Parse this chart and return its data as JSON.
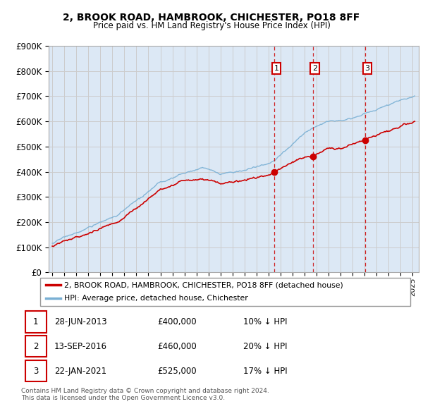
{
  "title": "2, BROOK ROAD, HAMBROOK, CHICHESTER, PO18 8FF",
  "subtitle": "Price paid vs. HM Land Registry's House Price Index (HPI)",
  "legend_label_red": "2, BROOK ROAD, HAMBROOK, CHICHESTER, PO18 8FF (detached house)",
  "legend_label_blue": "HPI: Average price, detached house, Chichester",
  "footnote": "Contains HM Land Registry data © Crown copyright and database right 2024.\nThis data is licensed under the Open Government Licence v3.0.",
  "transactions": [
    {
      "num": 1,
      "date": "28-JUN-2013",
      "price": "£400,000",
      "hpi_rel": "10% ↓ HPI",
      "year": 2013.49
    },
    {
      "num": 2,
      "date": "13-SEP-2016",
      "price": "£460,000",
      "hpi_rel": "20% ↓ HPI",
      "year": 2016.71
    },
    {
      "num": 3,
      "date": "22-JAN-2021",
      "price": "£525,000",
      "hpi_rel": "17% ↓ HPI",
      "year": 2021.06
    }
  ],
  "transaction_prices": [
    400000,
    460000,
    525000
  ],
  "ylim": [
    0,
    900000
  ],
  "yticks": [
    0,
    100000,
    200000,
    300000,
    400000,
    500000,
    600000,
    700000,
    800000,
    900000
  ],
  "xlim_start": 1994.7,
  "xlim_end": 2025.5,
  "background_color": "#ffffff",
  "grid_color": "#cccccc",
  "plot_bg_color": "#dce8f5",
  "red_color": "#cc0000",
  "blue_color": "#7ab0d4",
  "marker_box_color": "#cc0000"
}
